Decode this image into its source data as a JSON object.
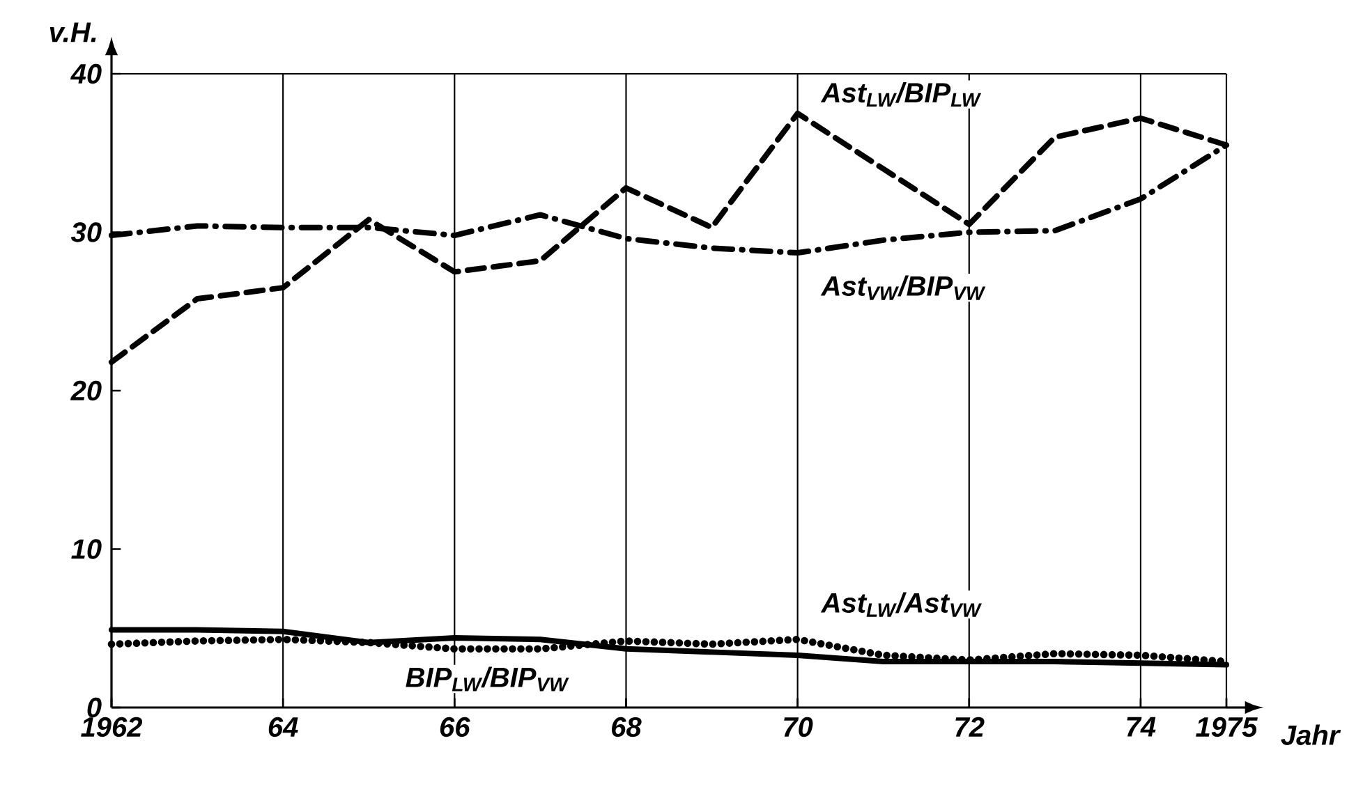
{
  "chart_data": {
    "type": "line",
    "xlabel": "Jahr",
    "ylabel": "v.H.",
    "xlim": [
      1962,
      1975
    ],
    "ylim": [
      0,
      40
    ],
    "xticks": [
      1962,
      {
        "value": 1964,
        "label": "64"
      },
      {
        "value": 1966,
        "label": "66"
      },
      {
        "value": 1968,
        "label": "68"
      },
      {
        "value": 1970,
        "label": "70"
      },
      {
        "value": 1972,
        "label": "72"
      },
      {
        "value": 1974,
        "label": "74"
      },
      1975
    ],
    "yticks": [
      0,
      10,
      20,
      30,
      40
    ],
    "grid": "x",
    "marker": "none",
    "x": [
      1962,
      1963,
      1964,
      1965,
      1966,
      1967,
      1968,
      1969,
      1970,
      1971,
      1972,
      1973,
      1974,
      1975
    ],
    "series": [
      {
        "name": "Ast$_{LW}$/BIP$_{LW}$",
        "color": "#000000",
        "line_style": "dashed",
        "values": [
          21.8,
          25.8,
          26.5,
          30.8,
          27.5,
          28.2,
          32.8,
          30.3,
          37.5,
          34,
          30.5,
          36,
          37.2,
          35.5
        ]
      },
      {
        "name": "Ast$_{VW}$/BIP$_{VW}$",
        "color": "#000000",
        "line_style": "dashdot",
        "values": [
          29.8,
          30.4,
          30.3,
          30.3,
          29.8,
          31.1,
          29.6,
          29,
          28.7,
          29.5,
          30,
          30.1,
          32.1,
          35.5
        ]
      },
      {
        "name": "Ast$_{LW}$/Ast$_{VW}$",
        "color": "#000000",
        "line_style": "dotted",
        "values": [
          4.0,
          4.2,
          4.3,
          4.1,
          3.7,
          3.7,
          4.2,
          4.0,
          4.3,
          3.3,
          3.0,
          3.4,
          3.3,
          2.9
        ]
      },
      {
        "name": "BIP$_{LW}$/BIP$_{VW}$",
        "color": "#000000",
        "line_style": "solid",
        "values": [
          4.9,
          4.9,
          4.8,
          4.1,
          4.4,
          4.3,
          3.7,
          3.5,
          3.3,
          2.9,
          2.9,
          2.9,
          2.8,
          2.7
        ]
      }
    ]
  }
}
